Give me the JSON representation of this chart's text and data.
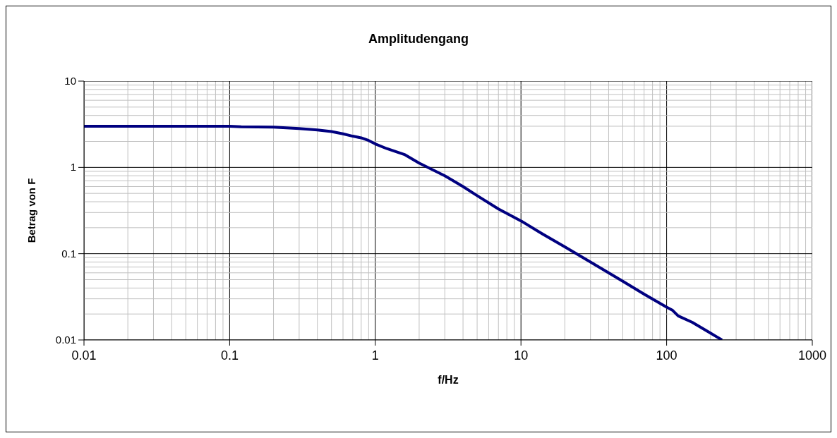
{
  "chart_data": {
    "type": "line",
    "title": "Amplitudengang",
    "xlabel": "f/Hz",
    "ylabel": "Betrag von F",
    "log": "xy",
    "grid": true,
    "marker": "none",
    "line_style": "solid",
    "xlim": [
      0.01,
      1000
    ],
    "ylim": [
      0.01,
      10
    ],
    "xticks": [
      0.01,
      {
        "value": 0.02,
        "label": null
      },
      {
        "value": 0.03,
        "label": null
      },
      {
        "value": 0.04,
        "label": null
      },
      {
        "value": 0.05,
        "label": null
      },
      {
        "value": 0.06,
        "label": null
      },
      {
        "value": 0.07,
        "label": null
      },
      {
        "value": 0.08,
        "label": null
      },
      {
        "value": 0.09,
        "label": null
      },
      0.1,
      {
        "value": 0.2,
        "label": null
      },
      {
        "value": 0.3,
        "label": null
      },
      {
        "value": 0.4,
        "label": null
      },
      {
        "value": 0.5,
        "label": null
      },
      {
        "value": 0.6,
        "label": null
      },
      {
        "value": 0.7,
        "label": null
      },
      {
        "value": 0.8,
        "label": null
      },
      {
        "value": 0.9,
        "label": null
      },
      1,
      {
        "value": 2,
        "label": null
      },
      {
        "value": 3,
        "label": null
      },
      {
        "value": 4,
        "label": null
      },
      {
        "value": 5,
        "label": null
      },
      {
        "value": 6,
        "label": null
      },
      {
        "value": 7,
        "label": null
      },
      {
        "value": 8,
        "label": null
      },
      {
        "value": 9,
        "label": null
      },
      10,
      {
        "value": 20,
        "label": null
      },
      {
        "value": 30,
        "label": null
      },
      {
        "value": 40,
        "label": null
      },
      {
        "value": 50,
        "label": null
      },
      {
        "value": 60,
        "label": null
      },
      {
        "value": 70,
        "label": null
      },
      {
        "value": 80,
        "label": null
      },
      {
        "value": 90,
        "label": null
      },
      100,
      {
        "value": 200,
        "label": null
      },
      {
        "value": 300,
        "label": null
      },
      {
        "value": 400,
        "label": null
      },
      {
        "value": 500,
        "label": null
      },
      {
        "value": 600,
        "label": null
      },
      {
        "value": 700,
        "label": null
      },
      {
        "value": 800,
        "label": null
      },
      {
        "value": 900,
        "label": null
      },
      1000
    ],
    "yticks": [
      0.01,
      {
        "value": 0.02,
        "label": null
      },
      {
        "value": 0.03,
        "label": null
      },
      {
        "value": 0.04,
        "label": null
      },
      {
        "value": 0.05,
        "label": null
      },
      {
        "value": 0.06,
        "label": null
      },
      {
        "value": 0.07,
        "label": null
      },
      {
        "value": 0.08,
        "label": null
      },
      {
        "value": 0.09,
        "label": null
      },
      0.1,
      {
        "value": 0.2,
        "label": null
      },
      {
        "value": 0.3,
        "label": null
      },
      {
        "value": 0.4,
        "label": null
      },
      {
        "value": 0.5,
        "label": null
      },
      {
        "value": 0.6,
        "label": null
      },
      {
        "value": 0.7,
        "label": null
      },
      {
        "value": 0.8,
        "label": null
      },
      {
        "value": 0.9,
        "label": null
      },
      1,
      {
        "value": 2,
        "label": null
      },
      {
        "value": 3,
        "label": null
      },
      {
        "value": 4,
        "label": null
      },
      {
        "value": 5,
        "label": null
      },
      {
        "value": 6,
        "label": null
      },
      {
        "value": 7,
        "label": null
      },
      {
        "value": 8,
        "label": null
      },
      {
        "value": 9,
        "label": null
      },
      10
    ],
    "x": [
      0.01,
      0.1,
      0.12,
      0.2,
      0.3,
      0.4,
      0.5,
      0.6,
      0.7,
      0.8,
      0.9,
      1,
      1.2,
      1.6,
      2,
      3,
      4,
      5,
      7,
      10,
      14,
      20,
      30,
      50,
      70,
      100,
      110,
      120,
      150,
      200,
      240
    ],
    "series": [
      {
        "color": "#000080",
        "values": [
          3,
          3,
          2.95,
          2.93,
          2.82,
          2.72,
          2.6,
          2.45,
          2.3,
          2.2,
          2.05,
          1.87,
          1.65,
          1.4,
          1.12,
          0.8,
          0.6,
          0.47,
          0.33,
          0.24,
          0.17,
          0.12,
          0.08,
          0.048,
          0.034,
          0.024,
          0.022,
          0.019,
          0.016,
          0.012,
          0.01
        ]
      }
    ]
  }
}
